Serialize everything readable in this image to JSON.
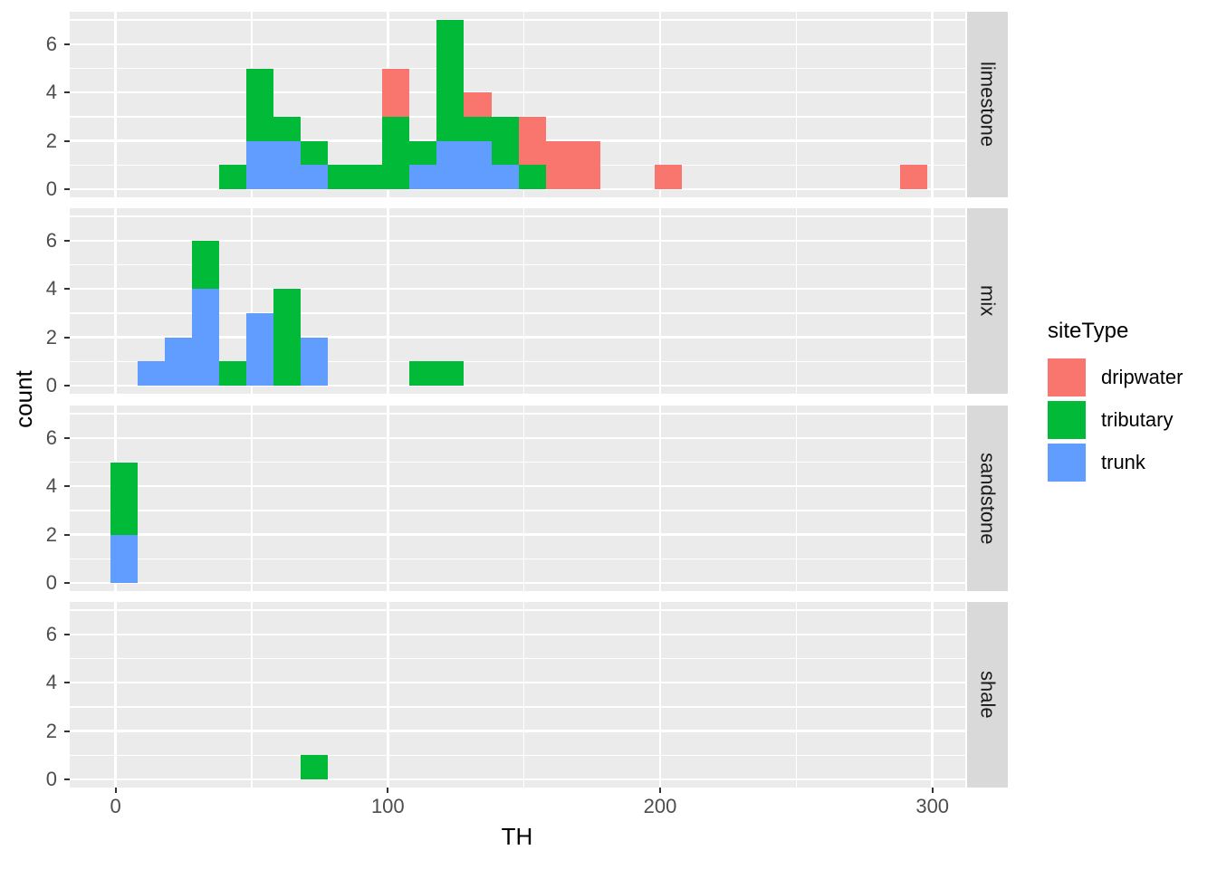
{
  "axes": {
    "x_title": "TH",
    "y_title": "count",
    "x_ticks": [
      0,
      100,
      200,
      300
    ],
    "x_tick_labels": [
      "0",
      "100",
      "200",
      "300"
    ],
    "x_minor": [
      50,
      150,
      250
    ],
    "y_ticks": [
      0,
      2,
      4,
      6
    ],
    "y_tick_labels": [
      "0",
      "2",
      "4",
      "6"
    ],
    "y_minor": [
      1,
      3,
      5,
      7
    ]
  },
  "legend": {
    "title": "siteType",
    "items": [
      {
        "label": "dripwater",
        "color": "#F8766D"
      },
      {
        "label": "tributary",
        "color": "#00BA38"
      },
      {
        "label": "trunk",
        "color": "#619CFF"
      }
    ]
  },
  "style": {
    "panel_bg": "#EBEBEB",
    "strip_bg": "#D9D9D9",
    "grid_color": "#FFFFFF",
    "tick_color": "#333333",
    "tick_label_color": "#4D4D4D",
    "strip_text_color": "#1A1A1A"
  },
  "chart_data": {
    "type": "bar",
    "subtype": "stacked-histogram-faceted",
    "xlabel": "TH",
    "ylabel": "count",
    "bin_width": 10,
    "x_domain": [
      -17,
      312
    ],
    "y_domain": [
      -0.35,
      7.35
    ],
    "grid": true,
    "legend_position": "right",
    "series_order_bottom_to_top": [
      "trunk",
      "tributary",
      "dripwater"
    ],
    "facets": [
      {
        "label": "limestone",
        "bars": [
          {
            "center": 43,
            "trunk": 0,
            "tributary": 1,
            "dripwater": 0
          },
          {
            "center": 53,
            "trunk": 2,
            "tributary": 3,
            "dripwater": 0
          },
          {
            "center": 63,
            "trunk": 2,
            "tributary": 1,
            "dripwater": 0
          },
          {
            "center": 73,
            "trunk": 1,
            "tributary": 1,
            "dripwater": 0
          },
          {
            "center": 83,
            "trunk": 0,
            "tributary": 1,
            "dripwater": 0
          },
          {
            "center": 93,
            "trunk": 0,
            "tributary": 1,
            "dripwater": 0
          },
          {
            "center": 103,
            "trunk": 0,
            "tributary": 3,
            "dripwater": 2
          },
          {
            "center": 113,
            "trunk": 1,
            "tributary": 1,
            "dripwater": 0
          },
          {
            "center": 123,
            "trunk": 2,
            "tributary": 5,
            "dripwater": 0
          },
          {
            "center": 133,
            "trunk": 2,
            "tributary": 1,
            "dripwater": 1
          },
          {
            "center": 143,
            "trunk": 1,
            "tributary": 2,
            "dripwater": 0
          },
          {
            "center": 153,
            "trunk": 0,
            "tributary": 1,
            "dripwater": 2
          },
          {
            "center": 163,
            "trunk": 0,
            "tributary": 0,
            "dripwater": 2
          },
          {
            "center": 173,
            "trunk": 0,
            "tributary": 0,
            "dripwater": 2
          },
          {
            "center": 203,
            "trunk": 0,
            "tributary": 0,
            "dripwater": 1
          },
          {
            "center": 293,
            "trunk": 0,
            "tributary": 0,
            "dripwater": 1
          }
        ]
      },
      {
        "label": "mix",
        "bars": [
          {
            "center": 13,
            "trunk": 1,
            "tributary": 0,
            "dripwater": 0
          },
          {
            "center": 23,
            "trunk": 2,
            "tributary": 0,
            "dripwater": 0
          },
          {
            "center": 33,
            "trunk": 4,
            "tributary": 2,
            "dripwater": 0
          },
          {
            "center": 43,
            "trunk": 0,
            "tributary": 1,
            "dripwater": 0
          },
          {
            "center": 53,
            "trunk": 3,
            "tributary": 0,
            "dripwater": 0
          },
          {
            "center": 63,
            "trunk": 0,
            "tributary": 4,
            "dripwater": 0
          },
          {
            "center": 73,
            "trunk": 2,
            "tributary": 0,
            "dripwater": 0
          },
          {
            "center": 113,
            "trunk": 0,
            "tributary": 1,
            "dripwater": 0
          },
          {
            "center": 123,
            "trunk": 0,
            "tributary": 1,
            "dripwater": 0
          }
        ]
      },
      {
        "label": "sandstone",
        "bars": [
          {
            "center": 3,
            "trunk": 2,
            "tributary": 3,
            "dripwater": 0
          }
        ]
      },
      {
        "label": "shale",
        "bars": [
          {
            "center": 73,
            "trunk": 0,
            "tributary": 1,
            "dripwater": 0
          }
        ]
      }
    ]
  }
}
